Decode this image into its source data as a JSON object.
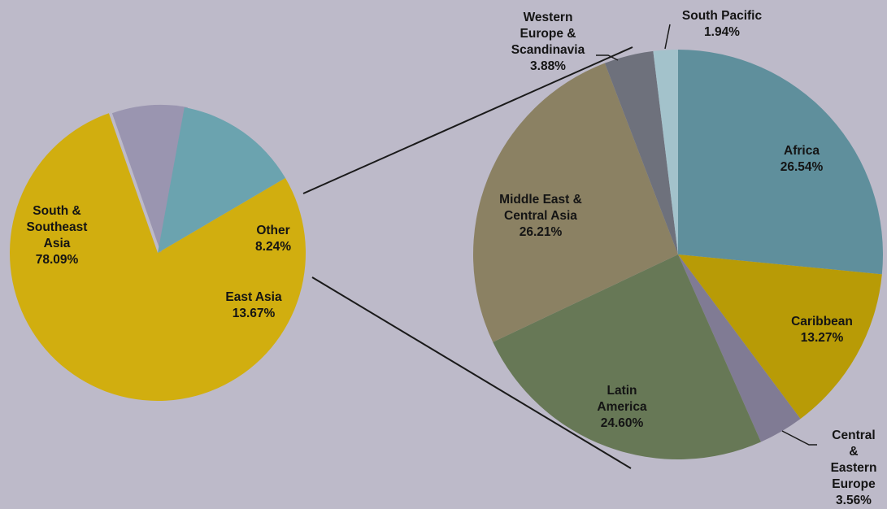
{
  "chart_data": [
    {
      "type": "pie",
      "title": "",
      "slices": [
        {
          "label": "South & Southeast Asia",
          "value": 78.09,
          "value_text": "78.09%",
          "color": "#d1ae0f"
        },
        {
          "label": "Other",
          "value": 8.24,
          "value_text": "8.24%",
          "color": "#9a95b0"
        },
        {
          "label": "East Asia",
          "value": 13.67,
          "value_text": "13.67%",
          "color": "#6ba3af"
        }
      ],
      "exploded_slice": "Other"
    },
    {
      "type": "pie",
      "title": "",
      "slices": [
        {
          "label": "Africa",
          "value": 26.54,
          "value_text": "26.54%",
          "color": "#5f8f9c"
        },
        {
          "label": "Caribbean",
          "value": 13.27,
          "value_text": "13.27%",
          "color": "#b89b06"
        },
        {
          "label": "Central & Eastern Europe",
          "value": 3.56,
          "value_text": "3.56%",
          "color": "#807b94"
        },
        {
          "label": "Latin America",
          "value": 24.6,
          "value_text": "24.60%",
          "color": "#677856"
        },
        {
          "label": "Middle East & Central Asia",
          "value": 26.21,
          "value_text": "26.21%",
          "color": "#8b8163"
        },
        {
          "label": "Western Europe & Scandinavia",
          "value": 3.88,
          "value_text": "3.88%",
          "color": "#6e717c"
        },
        {
          "label": "South Pacific",
          "value": 1.94,
          "value_text": "1.94%",
          "color": "#a3c2cb"
        }
      ]
    }
  ]
}
